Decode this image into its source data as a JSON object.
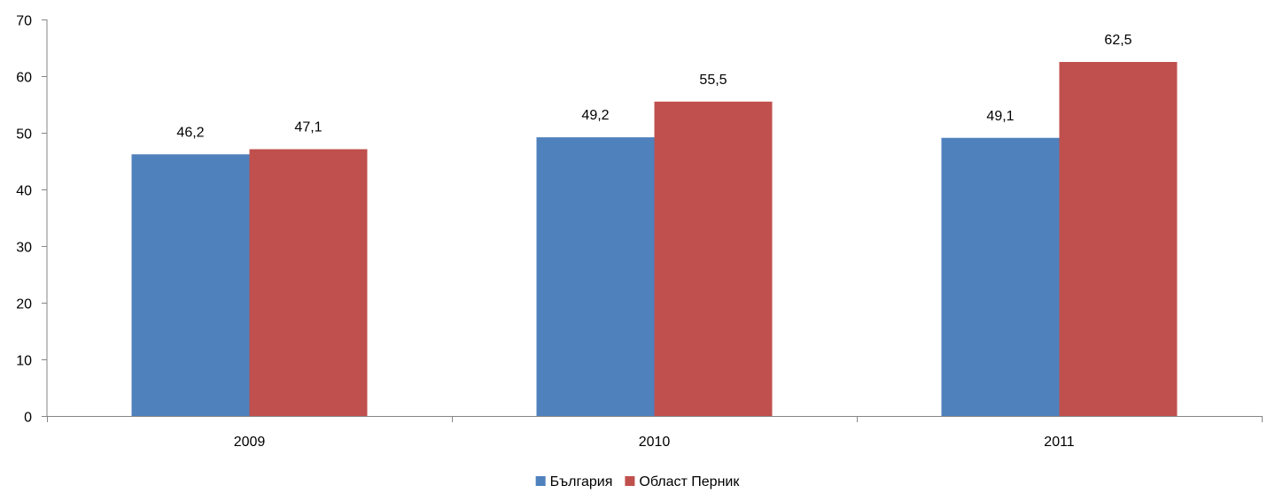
{
  "chart_data": {
    "type": "bar",
    "categories": [
      "2009",
      "2010",
      "2011"
    ],
    "series": [
      {
        "name": "България",
        "values": [
          46.2,
          49.2,
          49.1
        ],
        "color": "#4F81BD"
      },
      {
        "name": "Област Перник",
        "values": [
          47.1,
          55.5,
          62.5
        ],
        "color": "#C0504D"
      }
    ],
    "data_labels": [
      [
        "46,2",
        "49,2",
        "49,1"
      ],
      [
        "47,1",
        "55,5",
        "62,5"
      ]
    ],
    "yticks": [
      "0",
      "10",
      "20",
      "30",
      "40",
      "50",
      "60",
      "70"
    ],
    "ylim": [
      0,
      70
    ],
    "grid": false,
    "legend_position": "bottom",
    "title": "",
    "xlabel": "",
    "ylabel": ""
  }
}
